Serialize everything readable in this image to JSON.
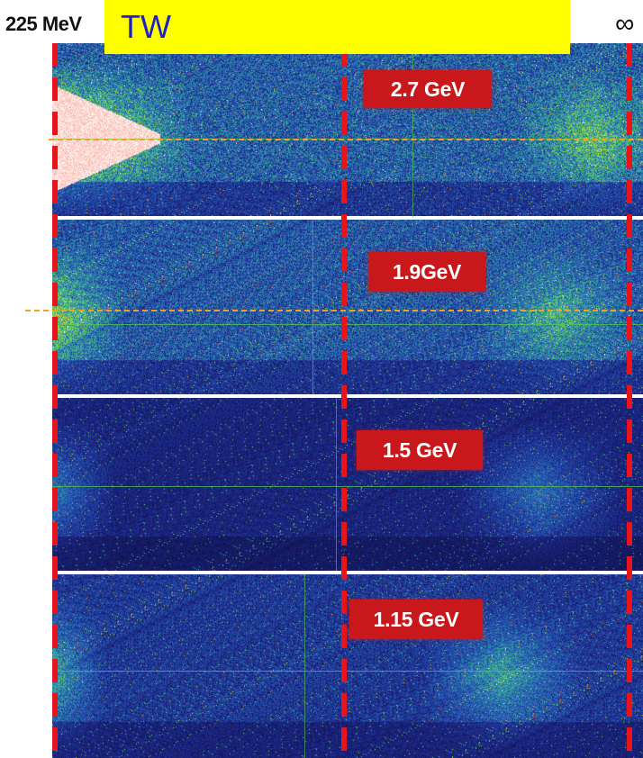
{
  "header": {
    "left_label": "225 MeV",
    "banner_text": "TW",
    "right_symbol": "∞"
  },
  "panels": [
    {
      "label": "2.7 GeV"
    },
    {
      "label": "1.9GeV"
    },
    {
      "label": "1.5 GeV"
    },
    {
      "label": "1.15 GeV"
    }
  ],
  "colors": {
    "banner_bg": "#ffff00",
    "banner_text": "#1e20c8",
    "label_bg": "#c8181c",
    "dash_line": "#e8141a",
    "guide_line": "#f5a020",
    "background_noise": "#0a0a3a"
  }
}
